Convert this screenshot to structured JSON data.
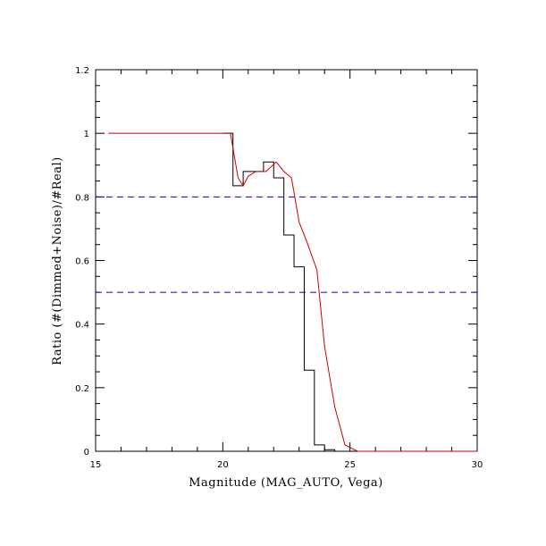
{
  "chart_data": {
    "type": "line",
    "title": "",
    "xlabel": "Magnitude (MAG_AUTO, Vega)",
    "ylabel": "Ratio (#(Dimmed+Noise)/#Real)",
    "xlim": [
      15,
      30
    ],
    "ylim": [
      0,
      1.2
    ],
    "x_ticks": [
      "15",
      "20",
      "25",
      "30"
    ],
    "y_ticks": [
      "0",
      "0.2",
      "0.4",
      "0.6",
      "0.8",
      "1",
      "1.2"
    ],
    "grid": false,
    "colors": {
      "histogram": "#000000",
      "curve": "#cc0000",
      "reference_lines": "#0000cc"
    },
    "reference_lines": [
      {
        "y": 0.8,
        "style": "dashed"
      },
      {
        "y": 0.5,
        "style": "dashed"
      }
    ],
    "histogram_bins": {
      "edges": [
        20.0,
        20.4,
        20.8,
        21.2,
        21.6,
        22.0,
        22.4,
        22.8,
        23.2,
        23.6,
        24.0,
        24.4,
        24.8,
        25.2,
        25.6
      ],
      "values": [
        1.0,
        0.835,
        0.88,
        0.88,
        0.91,
        0.86,
        0.68,
        0.58,
        0.255,
        0.02,
        0.005,
        0.0,
        0.0,
        0.0
      ]
    },
    "series": [
      {
        "x": [
          15.5,
          20.3,
          20.6,
          20.8,
          21.0,
          21.3,
          21.7,
          22.1,
          22.4,
          22.7,
          23.0,
          23.3,
          23.7,
          24.0,
          24.4,
          24.8,
          25.3,
          30.0
        ],
        "y": [
          1.0,
          1.0,
          0.86,
          0.835,
          0.865,
          0.88,
          0.88,
          0.91,
          0.88,
          0.86,
          0.72,
          0.66,
          0.57,
          0.33,
          0.14,
          0.02,
          0.0,
          0.0
        ]
      }
    ]
  }
}
